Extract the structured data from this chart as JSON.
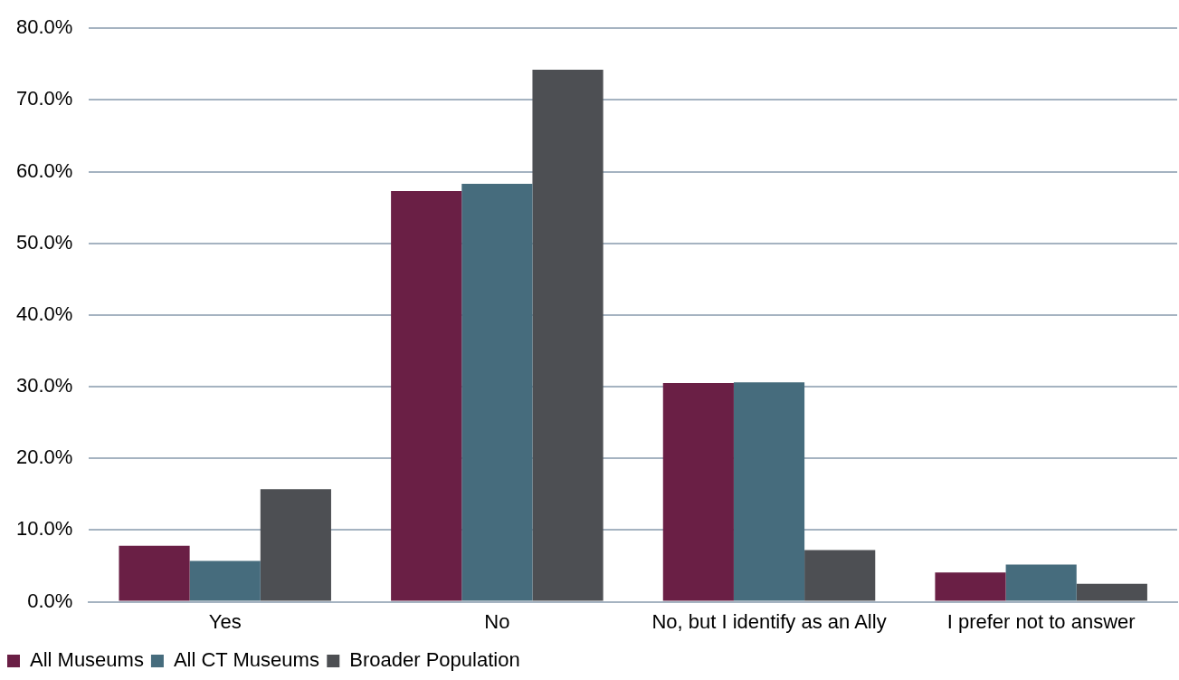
{
  "chart_data": {
    "type": "bar",
    "categories": [
      "Yes",
      "No",
      "No, but I identify as an Ally",
      "I prefer not to answer"
    ],
    "series": [
      {
        "name": "All Museums",
        "color": "#6a1f45",
        "values": [
          7.8,
          57.3,
          30.5,
          4.1
        ]
      },
      {
        "name": "All CT Museums",
        "color": "#466c7d",
        "values": [
          5.7,
          58.3,
          30.6,
          5.2
        ]
      },
      {
        "name": "Broader Population",
        "color": "#4d4f53",
        "values": [
          15.7,
          74.2,
          7.2,
          2.5
        ]
      }
    ],
    "ylim": [
      0,
      80
    ],
    "yticks": [
      {
        "value": 0,
        "label": "0.0%"
      },
      {
        "value": 10,
        "label": "10.0%"
      },
      {
        "value": 20,
        "label": "20.0%"
      },
      {
        "value": 30,
        "label": "30.0%"
      },
      {
        "value": 40,
        "label": "40.0%"
      },
      {
        "value": 50,
        "label": "50.0%"
      },
      {
        "value": 60,
        "label": "60.0%"
      },
      {
        "value": 70,
        "label": "70.0%"
      },
      {
        "value": 80,
        "label": "80.0%"
      }
    ],
    "grid": "y",
    "legend": "bottom left"
  }
}
